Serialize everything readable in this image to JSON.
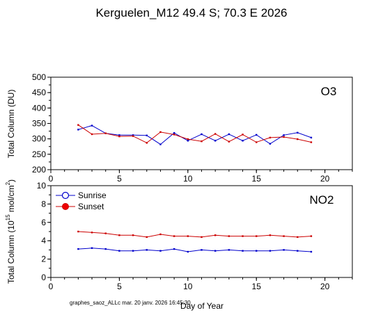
{
  "title": "Kerguelen_M12  49.4 S; 70.3 E    2026",
  "footer": "graphes_saoz_ALLc  mar. 20 janv. 2026 16:45:30",
  "colors": {
    "sunrise": "#0000cc",
    "sunset": "#cc0000",
    "axis": "#000000"
  },
  "legend": {
    "sunrise": "Sunrise",
    "sunset": "Sunset"
  },
  "chart_data": [
    {
      "type": "line",
      "panel_label": "O3",
      "ylabel": "Total Column  (DU)",
      "xlim": [
        0,
        22
      ],
      "ylim": [
        200,
        500
      ],
      "yticks": [
        200,
        250,
        300,
        350,
        400,
        450,
        500
      ],
      "xticks": [
        0,
        5,
        10,
        15,
        20
      ],
      "series": [
        {
          "name": "Sunrise",
          "x": [
            2,
            3,
            4,
            5,
            6,
            7,
            8,
            9,
            10,
            11,
            12,
            13,
            14,
            15,
            16,
            17,
            18,
            19
          ],
          "y": [
            330,
            343,
            318,
            312,
            312,
            311,
            282,
            319,
            294,
            315,
            294,
            315,
            294,
            313,
            284,
            312,
            320,
            304
          ]
        },
        {
          "name": "Sunset",
          "x": [
            2,
            3,
            4,
            5,
            6,
            7,
            8,
            9,
            10,
            11,
            12,
            13,
            14,
            15,
            16,
            17,
            18,
            19
          ],
          "y": [
            345,
            315,
            318,
            308,
            309,
            287,
            322,
            314,
            299,
            292,
            316,
            291,
            314,
            289,
            304,
            306,
            299,
            289
          ]
        }
      ]
    },
    {
      "type": "line",
      "panel_label": "NO2",
      "ylabel_main": "Total Column (10",
      "ylabel_sup1": "15",
      "ylabel_mid": " mol/cm",
      "ylabel_sup2": "2",
      "ylabel_end": ")",
      "xlabel": "Day of Year",
      "xlim": [
        0,
        22
      ],
      "ylim": [
        0,
        10
      ],
      "yticks": [
        0,
        2,
        4,
        6,
        8,
        10
      ],
      "xticks": [
        0,
        5,
        10,
        15,
        20
      ],
      "series": [
        {
          "name": "Sunrise",
          "x": [
            2,
            3,
            4,
            5,
            6,
            7,
            8,
            9,
            10,
            11,
            12,
            13,
            14,
            15,
            16,
            17,
            18,
            19
          ],
          "y": [
            3.1,
            3.2,
            3.1,
            2.9,
            2.9,
            3.0,
            2.9,
            3.1,
            2.8,
            3.0,
            2.9,
            3.0,
            2.9,
            2.9,
            2.9,
            3.0,
            2.9,
            2.8
          ]
        },
        {
          "name": "Sunset",
          "x": [
            2,
            3,
            4,
            5,
            6,
            7,
            8,
            9,
            10,
            11,
            12,
            13,
            14,
            15,
            16,
            17,
            18,
            19
          ],
          "y": [
            5.0,
            4.9,
            4.8,
            4.6,
            4.6,
            4.4,
            4.7,
            4.5,
            4.5,
            4.4,
            4.6,
            4.5,
            4.5,
            4.5,
            4.6,
            4.5,
            4.4,
            4.5
          ]
        }
      ]
    }
  ]
}
